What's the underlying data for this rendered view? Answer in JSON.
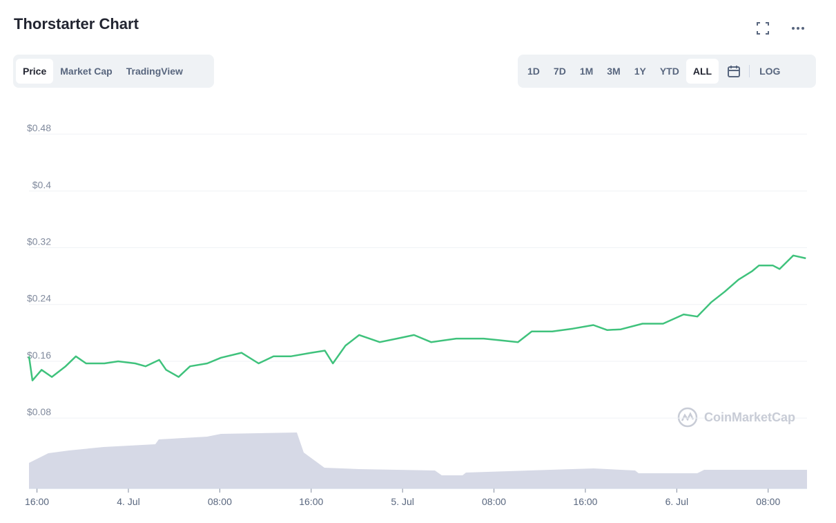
{
  "header": {
    "title": "Thorstarter Chart",
    "tabs": [
      "Price",
      "Market Cap",
      "TradingView"
    ],
    "active_tab": "Price",
    "ranges": [
      "1D",
      "7D",
      "1M",
      "3M",
      "1Y",
      "YTD",
      "ALL"
    ],
    "active_range": "ALL",
    "log": "LOG"
  },
  "chart_data": {
    "type": "line",
    "watermark": "CoinMarketCap",
    "x": [
      15.3,
      15.6,
      16.4,
      17.3,
      18.5,
      19.4,
      20.3,
      21.9,
      23.1,
      24.6,
      25.5,
      26.7,
      27.3,
      28.4,
      29.4,
      30.9,
      32.1,
      33.9,
      35.4,
      36.7,
      38.2,
      40.0,
      41.2,
      41.9,
      43.0,
      44.2,
      46.0,
      47.5,
      49.0,
      50.5,
      52.7,
      55.1,
      56.3,
      58.1,
      59.3,
      61.1,
      62.9,
      64.7,
      65.9,
      67.1,
      69.0,
      70.8,
      72.6,
      73.8,
      75.0,
      76.2,
      77.4,
      78.6,
      79.2,
      80.4,
      81.0,
      82.2,
      83.3
    ],
    "series": [
      {
        "name": "Price",
        "color": "#3fc27c",
        "values": [
          0.167,
          0.133,
          0.148,
          0.138,
          0.153,
          0.167,
          0.157,
          0.157,
          0.16,
          0.157,
          0.153,
          0.162,
          0.148,
          0.138,
          0.153,
          0.157,
          0.165,
          0.172,
          0.157,
          0.167,
          0.167,
          0.172,
          0.175,
          0.157,
          0.182,
          0.197,
          0.187,
          0.192,
          0.197,
          0.187,
          0.192,
          0.192,
          0.19,
          0.187,
          0.202,
          0.202,
          0.206,
          0.211,
          0.204,
          0.205,
          0.213,
          0.213,
          0.226,
          0.223,
          0.243,
          0.258,
          0.275,
          0.287,
          0.295,
          0.295,
          0.29,
          0.309,
          0.305
        ]
      }
    ],
    "xlim": [
      15.3,
      83.4
    ],
    "xticks": [
      {
        "value": 16,
        "label": "16:00"
      },
      {
        "value": 24,
        "label": "4. Jul"
      },
      {
        "value": 32,
        "label": "08:00"
      },
      {
        "value": 40,
        "label": "16:00"
      },
      {
        "value": 48,
        "label": "5. Jul"
      },
      {
        "value": 56,
        "label": "08:00"
      },
      {
        "value": 64,
        "label": "16:00"
      },
      {
        "value": 72,
        "label": "6. Jul"
      },
      {
        "value": 80,
        "label": "08:00"
      }
    ],
    "ylim": [
      0.05,
      0.52
    ],
    "yticks": [
      {
        "value": 0.08,
        "label": "$0.08"
      },
      {
        "value": 0.16,
        "label": "$0.16"
      },
      {
        "value": 0.24,
        "label": "$0.24"
      },
      {
        "value": 0.32,
        "label": "$0.32"
      },
      {
        "value": 0.4,
        "label": "$0.4"
      },
      {
        "value": 0.48,
        "label": "$0.48"
      }
    ],
    "grid": true
  }
}
